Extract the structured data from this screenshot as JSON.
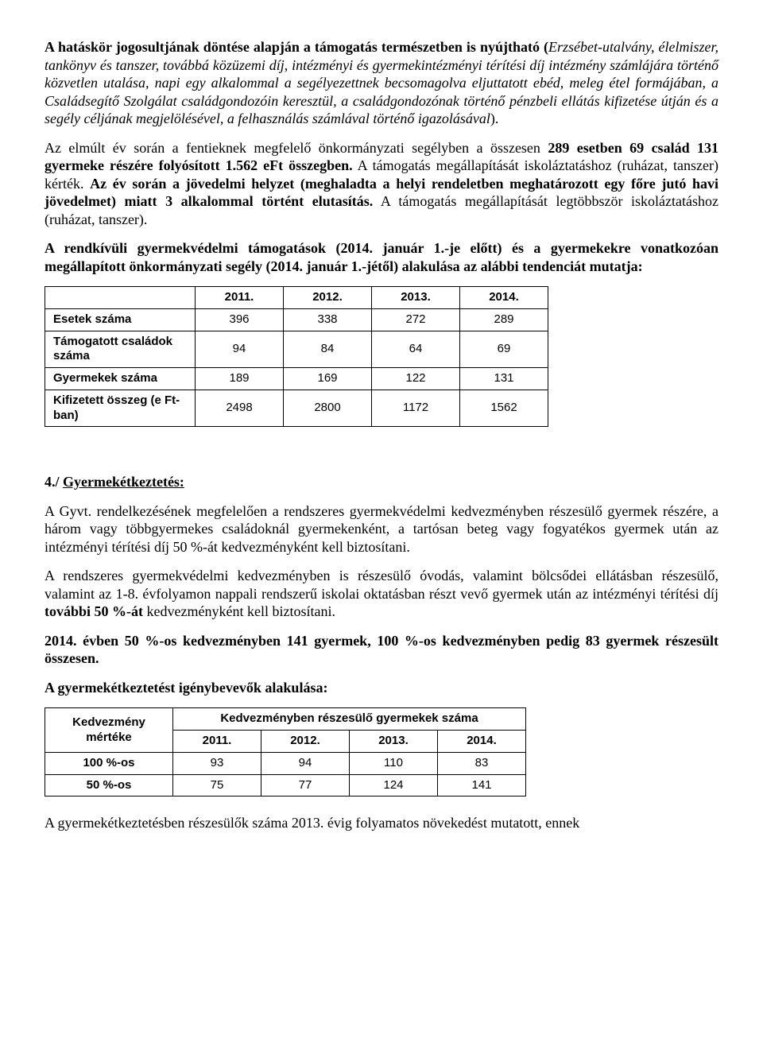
{
  "para1": {
    "lead_bold": "A hatáskör jogosultjának döntése alapján a támogatás természetben is nyújtható (",
    "italic_body": "Erzsébet-utalvány, élelmiszer, tankönyv és tanszer, továbbá közüzemi díj, intézményi és gyermekintézményi térítési díj intézmény számlájára történő közvetlen utalása, napi egy alkalommal a segélyezettnek becsomagolva eljuttatott ebéd, meleg étel formájában, a Családsegítő Szolgálat családgondozóin keresztül, a családgondozónak történő pénzbeli ellátás kifizetése útján és a segély céljának megjelölésével, a felhasználás számlával történő igazolásával",
    "close": ")."
  },
  "para2": {
    "t1": "Az elmúlt év során a fentieknek megfelelő önkormányzati segélyben a összesen ",
    "b1": "289 esetben 69 család 131 gyermeke részére folyósított 1.562 eFt összegben.",
    "t2": " A támogatás megállapítását iskoláztatáshoz (ruházat, tanszer) kérték. ",
    "b2": "Az év során a jövedelmi helyzet (meghaladta a helyi rendeletben meghatározott egy főre jutó havi jövedelmet) miatt 3 alkalommal történt elutasítás.",
    "t3": " A támogatás megállapítását legtöbbször iskoláztatáshoz (ruházat, tanszer)."
  },
  "para3": "A rendkívüli gyermekvédelmi támogatások (2014. január 1.-je előtt) és a gyermekekre vonatkozóan megállapított önkormányzati segély (2014. január 1.-jétől) alakulása az alábbi tendenciát mutatja:",
  "table1": {
    "headers": [
      "",
      "2011.",
      "2012.",
      "2013.",
      "2014."
    ],
    "rows": [
      {
        "label": "Esetek száma",
        "vals": [
          "396",
          "338",
          "272",
          "289"
        ]
      },
      {
        "label": "Támogatott családok száma",
        "vals": [
          "94",
          "84",
          "64",
          "69"
        ]
      },
      {
        "label": "Gyermekek száma",
        "vals": [
          "189",
          "169",
          "122",
          "131"
        ]
      },
      {
        "label": "Kifizetett összeg (e Ft-ban)",
        "vals": [
          "2498",
          "2800",
          "1172",
          "1562"
        ]
      }
    ]
  },
  "section4_title": "4./ Gyermekétkeztetés:",
  "para4": "A Gyvt. rendelkezésének megfelelően a rendszeres gyermekvédelmi kedvezményben részesülő gyermek részére, a három vagy többgyermekes családoknál gyermekenként, a tartósan beteg vagy fogyatékos gyermek után az intézményi térítési díj 50 %-át kedvezményként kell biztosítani.",
  "para5": {
    "t1": "A rendszeres gyermekvédelmi kedvezményben is részesülő óvodás, valamint bölcsődei ellátásban részesülő, valamint az 1-8. évfolyamon nappali rendszerű iskolai oktatásban részt vevő gyermek után az intézményi térítési díj ",
    "b1": "további 50 %-át",
    "t2": " kedvezményként kell biztosítani."
  },
  "para6": "2014. évben 50 %-os kedvezményben 141 gyermek, 100 %-os kedvezményben pedig 83 gyermek részesült összesen.",
  "para7": "A gyermekétkeztetést igénybevevők alakulása:",
  "table2": {
    "row_header": "Kedvezmény mértéke",
    "merged_header": "Kedvezményben részesülő gyermekek száma",
    "year_headers": [
      "2011.",
      "2012.",
      "2013.",
      "2014."
    ],
    "rows": [
      {
        "label": "100 %-os",
        "vals": [
          "93",
          "94",
          "110",
          "83"
        ]
      },
      {
        "label": "50 %-os",
        "vals": [
          "75",
          "77",
          "124",
          "141"
        ]
      }
    ]
  },
  "para8": "A gyermekétkeztetésben részesülők száma 2013. évig folyamatos növekedést mutatott, ennek"
}
